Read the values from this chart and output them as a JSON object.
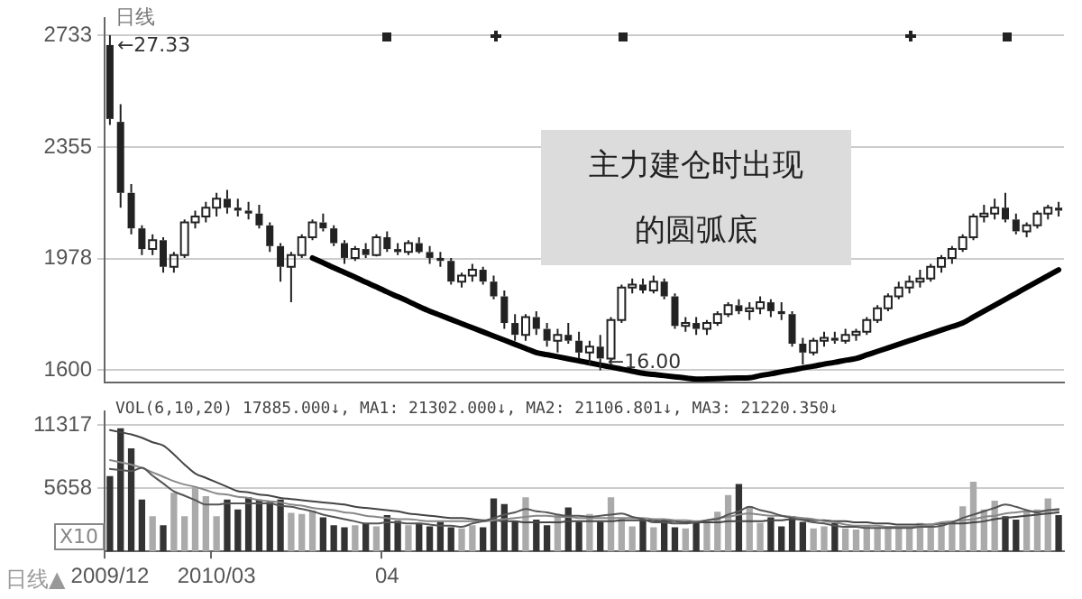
{
  "chart_data": [
    {
      "type": "candlestick",
      "categories": [
        "2009/12",
        null,
        null,
        null,
        null,
        null,
        null,
        null,
        null,
        null,
        "2010/03",
        null,
        null,
        null,
        null,
        null,
        null,
        null,
        null,
        null,
        null,
        null,
        null,
        null,
        null,
        null,
        "04",
        null,
        null,
        null,
        null,
        null,
        null,
        null,
        null,
        null,
        null,
        null,
        null,
        null,
        null,
        null,
        null,
        null,
        null,
        null,
        null,
        null,
        null,
        null,
        null,
        null,
        null,
        null,
        null,
        null,
        null,
        null,
        null,
        null,
        null,
        null,
        null,
        null,
        null,
        null,
        null,
        null,
        null,
        null,
        null,
        null,
        null,
        null,
        null,
        null,
        null,
        null,
        null,
        null,
        null,
        null,
        null,
        null,
        null,
        null,
        null,
        null,
        null,
        null
      ],
      "ylim": [
        1560,
        2790
      ],
      "yticks": [
        1600,
        1978,
        2355,
        2733
      ],
      "grid": "y",
      "tick_labels": "y",
      "annotations": [
        "日线",
        "主力建仓时出现的圆弧底",
        {
          "text": "←27.33",
          "x": "2009/12",
          "y": 2733
        },
        {
          "text": "←16.00",
          "y": 1600
        }
      ],
      "series": [
        {
          "type": "candlestick",
          "color": "#222222",
          "ohlc": [
            [
              2700,
              2733,
              2430,
              2450
            ],
            [
              2440,
              2500,
              2150,
              2200
            ],
            [
              2200,
              2230,
              2060,
              2080
            ],
            [
              2080,
              2090,
              1990,
              2010
            ],
            [
              2010,
              2060,
              1990,
              2040
            ],
            [
              2040,
              2050,
              1930,
              1950
            ],
            [
              1950,
              2000,
              1930,
              1990
            ],
            [
              1990,
              2110,
              1980,
              2100
            ],
            [
              2100,
              2140,
              2080,
              2120
            ],
            [
              2120,
              2170,
              2100,
              2150
            ],
            [
              2150,
              2200,
              2120,
              2180
            ],
            [
              2180,
              2210,
              2130,
              2150
            ],
            [
              2150,
              2180,
              2120,
              2140
            ],
            [
              2140,
              2170,
              2110,
              2130
            ],
            [
              2130,
              2160,
              2080,
              2090
            ],
            [
              2090,
              2100,
              2000,
              2020
            ],
            [
              2020,
              2030,
              1900,
              1950
            ],
            [
              1950,
              2000,
              1830,
              1990
            ],
            [
              1990,
              2060,
              1980,
              2050
            ],
            [
              2050,
              2110,
              2040,
              2100
            ],
            [
              2100,
              2130,
              2070,
              2080
            ],
            [
              2080,
              2090,
              2020,
              2030
            ],
            [
              2030,
              2040,
              1960,
              1980
            ],
            [
              1980,
              2020,
              1970,
              2010
            ],
            [
              2010,
              2030,
              1980,
              1990
            ],
            [
              1990,
              2060,
              1985,
              2050
            ],
            [
              2050,
              2070,
              2000,
              2010
            ],
            [
              2010,
              2030,
              1990,
              2000
            ],
            [
              2000,
              2040,
              1990,
              2030
            ],
            [
              2030,
              2050,
              1995,
              2000
            ],
            [
              2000,
              2020,
              1960,
              1980
            ],
            [
              1980,
              2000,
              1950,
              1970
            ],
            [
              1970,
              1980,
              1890,
              1900
            ],
            [
              1900,
              1930,
              1880,
              1920
            ],
            [
              1920,
              1960,
              1900,
              1940
            ],
            [
              1940,
              1950,
              1890,
              1900
            ],
            [
              1900,
              1920,
              1840,
              1850
            ],
            [
              1850,
              1870,
              1740,
              1760
            ],
            [
              1760,
              1790,
              1700,
              1720
            ],
            [
              1720,
              1790,
              1700,
              1780
            ],
            [
              1780,
              1800,
              1720,
              1740
            ],
            [
              1740,
              1760,
              1680,
              1700
            ],
            [
              1700,
              1740,
              1660,
              1720
            ],
            [
              1720,
              1760,
              1690,
              1700
            ],
            [
              1700,
              1730,
              1640,
              1660
            ],
            [
              1660,
              1700,
              1620,
              1680
            ],
            [
              1680,
              1720,
              1600,
              1640
            ],
            [
              1640,
              1780,
              1630,
              1770
            ],
            [
              1770,
              1890,
              1760,
              1880
            ],
            [
              1880,
              1910,
              1860,
              1890
            ],
            [
              1890,
              1910,
              1860,
              1870
            ],
            [
              1870,
              1920,
              1860,
              1900
            ],
            [
              1900,
              1910,
              1840,
              1850
            ],
            [
              1850,
              1860,
              1740,
              1750
            ],
            [
              1750,
              1780,
              1730,
              1760
            ],
            [
              1760,
              1780,
              1720,
              1740
            ],
            [
              1740,
              1770,
              1720,
              1760
            ],
            [
              1760,
              1800,
              1750,
              1790
            ],
            [
              1790,
              1830,
              1780,
              1820
            ],
            [
              1820,
              1840,
              1790,
              1800
            ],
            [
              1800,
              1830,
              1770,
              1810
            ],
            [
              1810,
              1850,
              1790,
              1830
            ],
            [
              1830,
              1840,
              1780,
              1800
            ],
            [
              1800,
              1830,
              1770,
              1790
            ],
            [
              1790,
              1800,
              1680,
              1690
            ],
            [
              1690,
              1710,
              1620,
              1660
            ],
            [
              1660,
              1710,
              1650,
              1700
            ],
            [
              1700,
              1730,
              1680,
              1710
            ],
            [
              1710,
              1730,
              1690,
              1700
            ],
            [
              1700,
              1740,
              1690,
              1720
            ],
            [
              1720,
              1740,
              1700,
              1730
            ],
            [
              1730,
              1780,
              1720,
              1770
            ],
            [
              1770,
              1820,
              1760,
              1810
            ],
            [
              1810,
              1860,
              1800,
              1850
            ],
            [
              1850,
              1900,
              1840,
              1880
            ],
            [
              1880,
              1920,
              1860,
              1900
            ],
            [
              1900,
              1940,
              1880,
              1910
            ],
            [
              1910,
              1960,
              1900,
              1950
            ],
            [
              1950,
              1990,
              1930,
              1980
            ],
            [
              1980,
              2020,
              1960,
              2010
            ],
            [
              2010,
              2060,
              2000,
              2050
            ],
            [
              2050,
              2130,
              2040,
              2120
            ],
            [
              2120,
              2160,
              2100,
              2130
            ],
            [
              2130,
              2180,
              2110,
              2150
            ],
            [
              2150,
              2200,
              2100,
              2110
            ],
            [
              2110,
              2130,
              2060,
              2070
            ],
            [
              2070,
              2100,
              2050,
              2090
            ],
            [
              2090,
              2140,
              2080,
              2130
            ],
            [
              2130,
              2160,
              2110,
              2150
            ],
            [
              2150,
              2170,
              2120,
              2140
            ]
          ]
        },
        {
          "type": "line",
          "color": "#000000",
          "values": [
            null,
            null,
            null,
            null,
            null,
            null,
            null,
            null,
            null,
            null,
            null,
            null,
            null,
            null,
            null,
            null,
            null,
            null,
            null,
            1980,
            1964,
            1947,
            1931,
            1915,
            1898,
            1882,
            1865,
            1849,
            1833,
            1816,
            1800,
            1786,
            1772,
            1758,
            1744,
            1730,
            1716,
            1702,
            1688,
            1674,
            1660,
            1653,
            1646,
            1639,
            1632,
            1625,
            1618,
            1611,
            1604,
            1597,
            1590,
            1586,
            1582,
            1578,
            1574,
            1570,
            1571,
            1572,
            1573,
            1574,
            1575,
            1582,
            1588,
            1595,
            1601,
            1608,
            1614,
            1621,
            1627,
            1634,
            1640,
            1652,
            1664,
            1676,
            1688,
            1700,
            1712,
            1724,
            1736,
            1748,
            1760,
            1780,
            1800,
            1820,
            1840,
            1860,
            1880,
            1900,
            1920,
            1940
          ]
        }
      ]
    },
    {
      "type": "bar",
      "categories": [
        "2009/12",
        null,
        null,
        null,
        null,
        null,
        null,
        null,
        null,
        null,
        "2010/03",
        null,
        null,
        null,
        null,
        null,
        null,
        null,
        null,
        null,
        null,
        null,
        null,
        null,
        null,
        null,
        "04",
        null,
        null,
        null,
        null,
        null,
        null,
        null,
        null,
        null,
        null,
        null,
        null,
        null,
        null,
        null,
        null,
        null,
        null,
        null,
        null,
        null,
        null,
        null,
        null,
        null,
        null,
        null,
        null,
        null,
        null,
        null,
        null,
        null,
        null,
        null,
        null,
        null,
        null,
        null,
        null,
        null,
        null,
        null,
        null,
        null,
        null,
        null,
        null,
        null,
        null,
        null,
        null,
        null,
        null,
        null,
        null,
        null,
        null,
        null,
        null,
        null,
        null,
        null
      ],
      "ylim": [
        0,
        12540
      ],
      "yticks": [
        5658,
        11317
      ],
      "grid": "y",
      "annotations": [
        "VOL(6,10,20) 17885.000↓, MA1: 21302.000↓, MA2: 21106.801↓, MA3: 21220.350↓",
        "日线▲",
        "X10"
      ],
      "series": [
        {
          "type": "bar",
          "values": [
            6700,
            11000,
            9200,
            4600,
            3100,
            2300,
            5200,
            3100,
            5700,
            4900,
            3100,
            4600,
            3700,
            4800,
            4600,
            4400,
            4600,
            3400,
            3300,
            3600,
            3000,
            2300,
            2100,
            2300,
            2400,
            2200,
            3200,
            2700,
            2300,
            2500,
            2200,
            2600,
            2100,
            2000,
            2300,
            2100,
            4700,
            4200,
            2700,
            4800,
            2800,
            2300,
            3300,
            3900,
            2600,
            3300,
            2600,
            4800,
            2900,
            2200,
            2700,
            2100,
            2800,
            2100,
            2000,
            2600,
            2700,
            3500,
            5000,
            6000,
            4000,
            2500,
            3000,
            2200,
            3100,
            2600,
            2000,
            2200,
            2500,
            2000,
            1900,
            2300,
            2100,
            2000,
            2200,
            2000,
            2500,
            2300,
            2400,
            2600,
            4000,
            6200,
            3700,
            4500,
            3100,
            2800,
            3600,
            3700,
            4700,
            3200
          ],
          "colors": [
            "#333333",
            "#333333",
            "#333333",
            "#333333",
            "#aaaaaa",
            "#333333",
            "#aaaaaa",
            "#aaaaaa",
            "#aaaaaa",
            "#aaaaaa",
            "#aaaaaa",
            "#333333",
            "#333333",
            "#333333",
            "#333333",
            "#333333",
            "#333333",
            "#aaaaaa",
            "#aaaaaa",
            "#aaaaaa",
            "#333333",
            "#333333",
            "#333333",
            "#aaaaaa",
            "#333333",
            "#aaaaaa",
            "#333333",
            "#333333",
            "#aaaaaa",
            "#333333",
            "#333333",
            "#333333",
            "#333333",
            "#aaaaaa",
            "#aaaaaa",
            "#333333",
            "#333333",
            "#333333",
            "#333333",
            "#aaaaaa",
            "#333333",
            "#333333",
            "#aaaaaa",
            "#333333",
            "#333333",
            "#aaaaaa",
            "#333333",
            "#aaaaaa",
            "#aaaaaa",
            "#aaaaaa",
            "#333333",
            "#aaaaaa",
            "#333333",
            "#333333",
            "#aaaaaa",
            "#333333",
            "#aaaaaa",
            "#aaaaaa",
            "#aaaaaa",
            "#333333",
            "#aaaaaa",
            "#aaaaaa",
            "#333333",
            "#333333",
            "#333333",
            "#333333",
            "#aaaaaa",
            "#aaaaaa",
            "#333333",
            "#aaaaaa",
            "#aaaaaa",
            "#aaaaaa",
            "#aaaaaa",
            "#aaaaaa",
            "#aaaaaa",
            "#aaaaaa",
            "#aaaaaa",
            "#aaaaaa",
            "#aaaaaa",
            "#aaaaaa",
            "#aaaaaa",
            "#aaaaaa",
            "#aaaaaa",
            "#aaaaaa",
            "#333333",
            "#333333",
            "#aaaaaa",
            "#aaaaaa",
            "#aaaaaa",
            "#333333"
          ]
        },
        {
          "type": "line",
          "color": "#555555",
          "values": [
            7400,
            7300,
            7200,
            7500,
            6800,
            6100,
            5400,
            5000,
            4600,
            4200,
            4200,
            4300,
            4300,
            4300,
            4300,
            4300,
            4100,
            4000,
            3800,
            3600,
            3300,
            3100,
            2900,
            2700,
            2500,
            2500,
            2600,
            2600,
            2500,
            2500,
            2400,
            2300,
            2300,
            2200,
            2500,
            2700,
            3000,
            3300,
            3500,
            3800,
            3600,
            3500,
            3300,
            3200,
            3200,
            3100,
            3200,
            3300,
            3400,
            3100,
            2900,
            2600,
            2600,
            2500,
            2500,
            2600,
            2800,
            2900,
            3300,
            3600,
            4000,
            3700,
            3500,
            3200,
            3000,
            2800,
            2600,
            2500,
            2300,
            2200,
            2200,
            2100,
            2100,
            2100,
            2100,
            2100,
            2200,
            2200,
            2300,
            2600,
            3000,
            3300,
            3600,
            3900,
            4200,
            4000,
            3700,
            3500,
            3700,
            3800
          ]
        },
        {
          "type": "line",
          "color": "#888888",
          "values": [
            8200,
            8000,
            7800,
            7500,
            7100,
            6700,
            6300,
            6000,
            5800,
            5500,
            5200,
            5100,
            4900,
            4800,
            4600,
            4500,
            4400,
            4200,
            4100,
            3900,
            3800,
            3700,
            3500,
            3400,
            3200,
            3100,
            3000,
            2900,
            2900,
            2800,
            2700,
            2700,
            2700,
            2700,
            2700,
            2700,
            2800,
            2900,
            3000,
            3100,
            3200,
            3200,
            3100,
            3100,
            3000,
            3000,
            3000,
            3000,
            3000,
            3000,
            3000,
            2900,
            2900,
            2800,
            2800,
            2700,
            2800,
            3000,
            3100,
            3300,
            3400,
            3300,
            3200,
            3200,
            3100,
            3000,
            2900,
            2700,
            2600,
            2400,
            2300,
            2300,
            2300,
            2200,
            2200,
            2200,
            2300,
            2400,
            2600,
            2700,
            2800,
            2900,
            3100,
            3200,
            3400,
            3500,
            3600,
            3600,
            3700,
            3700
          ]
        },
        {
          "type": "line",
          "color": "#444444",
          "values": [
            10900,
            10700,
            10500,
            10200,
            9800,
            9500,
            8700,
            7800,
            7000,
            6600,
            6200,
            5800,
            5400,
            5300,
            5100,
            5000,
            4800,
            4700,
            4600,
            4500,
            4400,
            4300,
            4200,
            4000,
            3900,
            3800,
            3700,
            3600,
            3400,
            3300,
            3200,
            3100,
            3000,
            3000,
            2900,
            2800,
            2800,
            2700,
            2700,
            2600,
            2600,
            2600,
            2600,
            2700,
            2700,
            2700,
            2700,
            2700,
            2800,
            2800,
            2800,
            2800,
            2700,
            2700,
            2600,
            2600,
            2600,
            2600,
            2700,
            2700,
            2700,
            2700,
            2800,
            2800,
            2900,
            2900,
            2800,
            2800,
            2700,
            2700,
            2600,
            2600,
            2500,
            2500,
            2400,
            2400,
            2400,
            2400,
            2500,
            2500,
            2500,
            2600,
            2700,
            2900,
            3000,
            3100,
            3200,
            3300,
            3400,
            3500
          ]
        }
      ]
    }
  ]
}
